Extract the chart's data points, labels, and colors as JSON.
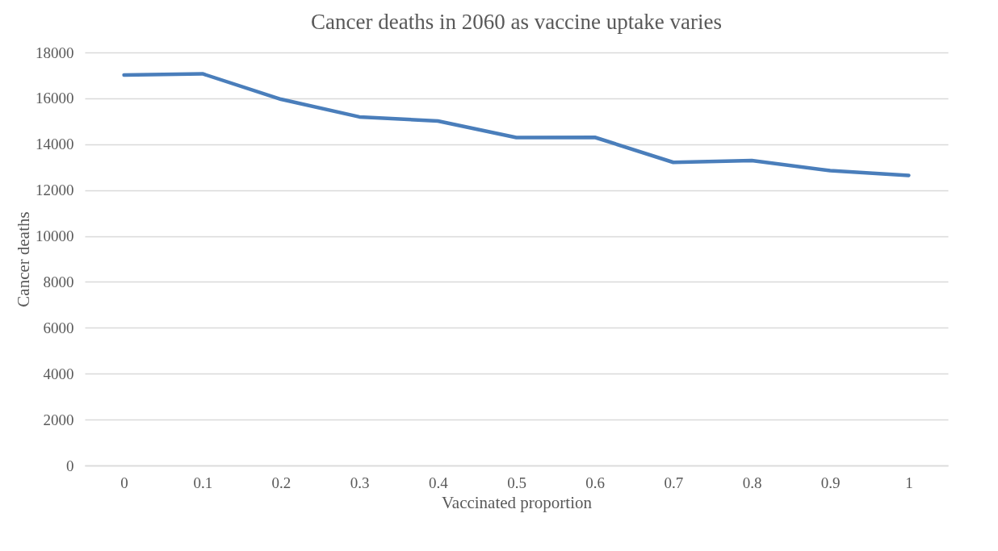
{
  "chart_data": {
    "type": "line",
    "title": "Cancer deaths in 2060 as vaccine uptake varies",
    "xlabel": "Vaccinated proportion",
    "ylabel": "Cancer deaths",
    "categories": [
      "0",
      "0.1",
      "0.2",
      "0.3",
      "0.4",
      "0.5",
      "0.6",
      "0.7",
      "0.8",
      "0.9",
      "1"
    ],
    "series": [
      {
        "color": "#4a7ebb",
        "values": [
          17020,
          17070,
          15960,
          15190,
          15010,
          14290,
          14300,
          13210,
          13290,
          12850,
          12640
        ]
      }
    ],
    "ylim": [
      0,
      18000
    ],
    "yticks": [
      0,
      2000,
      4000,
      6000,
      8000,
      10000,
      12000,
      14000,
      16000,
      18000
    ],
    "grid": "y",
    "marker": "none",
    "line_style": "solid"
  }
}
